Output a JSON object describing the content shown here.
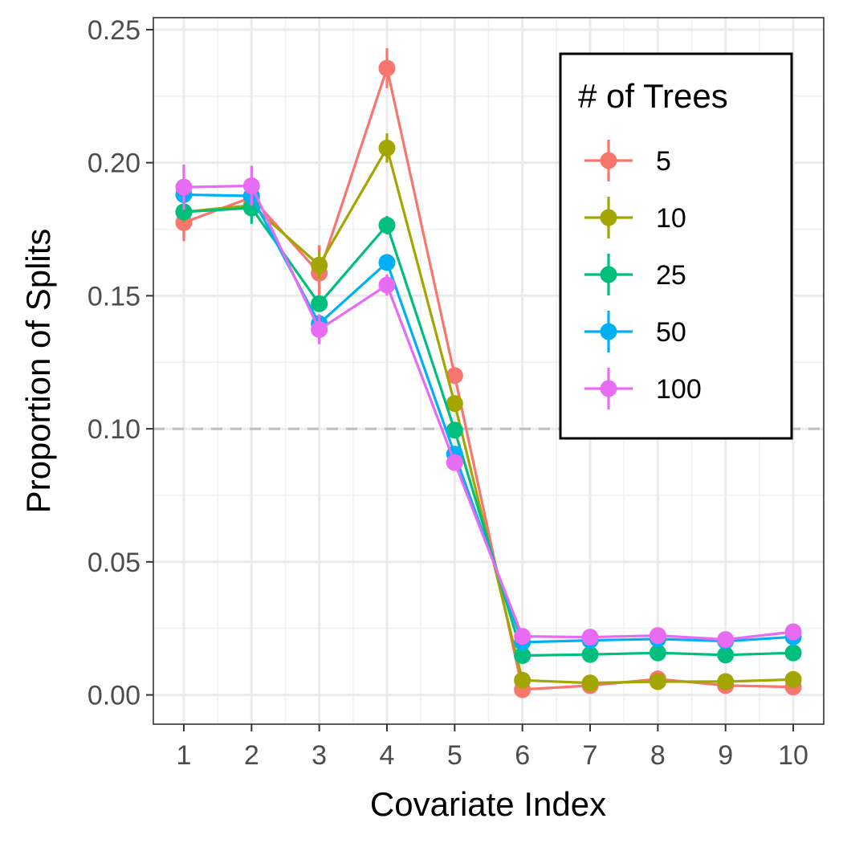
{
  "chart_data": {
    "type": "line",
    "xlabel": "Covariate Index",
    "ylabel": "Proportion of Splits",
    "x": [
      1,
      2,
      3,
      4,
      5,
      6,
      7,
      8,
      9,
      10
    ],
    "x_tick_labels": [
      "1",
      "2",
      "3",
      "4",
      "5",
      "6",
      "7",
      "8",
      "9",
      "10"
    ],
    "xlim": [
      0.55,
      10.45
    ],
    "ylim": [
      -0.011,
      0.2545
    ],
    "y_ticks": [
      0.0,
      0.05,
      0.1,
      0.15,
      0.2,
      0.25
    ],
    "y_tick_labels": [
      "0.00",
      "0.05",
      "0.10",
      "0.15",
      "0.20",
      "0.25"
    ],
    "grid": true,
    "reference_line": {
      "y": 0.1,
      "style": "dashed",
      "color": "#bebebe"
    },
    "legend": {
      "title": "# of Trees",
      "placement": "top-right"
    },
    "series": [
      {
        "name": "5",
        "color": "#F8766D",
        "values": [
          0.1775,
          0.187,
          0.1585,
          0.2355,
          0.12,
          0.002,
          0.0035,
          0.006,
          0.0035,
          0.003
        ],
        "errors": [
          0.007,
          0.006,
          0.0105,
          0.0075,
          0.003,
          0.001,
          0.001,
          0.0015,
          0.001,
          0.001
        ]
      },
      {
        "name": "10",
        "color": "#A3A500",
        "values": [
          0.1815,
          0.184,
          0.1615,
          0.2055,
          0.1095,
          0.0055,
          0.0045,
          0.005,
          0.005,
          0.0058
        ],
        "errors": [
          0.004,
          0.004,
          0.005,
          0.0055,
          0.0025,
          0.001,
          0.001,
          0.001,
          0.001,
          0.001
        ]
      },
      {
        "name": "25",
        "color": "#00BF7D",
        "values": [
          0.1815,
          0.183,
          0.147,
          0.1765,
          0.0995,
          0.0148,
          0.0152,
          0.0158,
          0.015,
          0.0158
        ],
        "errors": [
          0.003,
          0.006,
          0.003,
          0.0035,
          0.002,
          0.0008,
          0.0008,
          0.0008,
          0.0008,
          0.0008
        ]
      },
      {
        "name": "50",
        "color": "#00B0F6",
        "values": [
          0.188,
          0.1875,
          0.1395,
          0.1625,
          0.0905,
          0.0198,
          0.0205,
          0.021,
          0.0202,
          0.0218
        ],
        "errors": [
          0.0025,
          0.003,
          0.0035,
          0.003,
          0.002,
          0.0008,
          0.0008,
          0.0008,
          0.0008,
          0.0008
        ]
      },
      {
        "name": "100",
        "color": "#E76BF3",
        "values": [
          0.1908,
          0.1913,
          0.1373,
          0.154,
          0.0873,
          0.022,
          0.0217,
          0.0223,
          0.0208,
          0.0237
        ],
        "errors": [
          0.0085,
          0.0075,
          0.0055,
          0.004,
          0.002,
          0.0008,
          0.0008,
          0.0008,
          0.0008,
          0.001
        ]
      }
    ]
  }
}
